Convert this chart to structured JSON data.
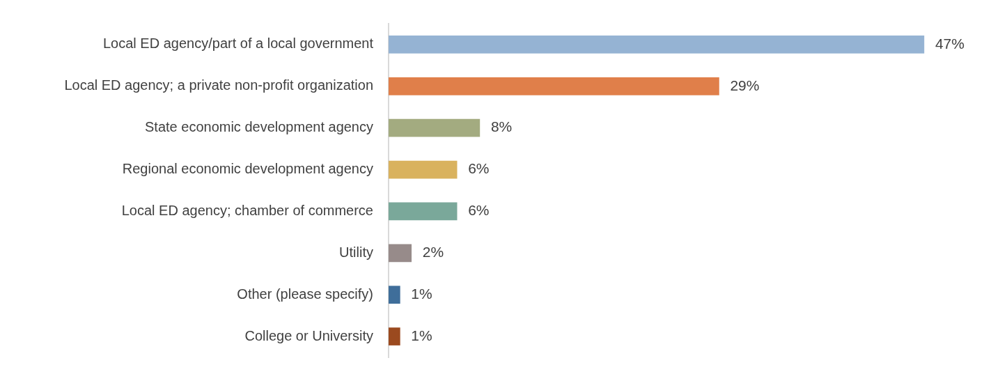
{
  "chart_data": {
    "type": "bar",
    "orientation": "horizontal",
    "categories": [
      "Local ED agency/part of a local government",
      "Local ED agency; a private non-profit organization",
      "State economic development agency",
      "Regional economic development agency",
      "Local ED agency; chamber of commerce",
      "Utility",
      "Other (please specify)",
      "College or University"
    ],
    "values": [
      47,
      29,
      8,
      6,
      6,
      2,
      1,
      1
    ],
    "colors": [
      "#95b3d3",
      "#e07f4a",
      "#a3ab80",
      "#d9b25e",
      "#7aa89a",
      "#978b8a",
      "#3f6e9a",
      "#9b4a1f"
    ],
    "value_labels": [
      "47%",
      "29%",
      "8%",
      "6%",
      "6%",
      "2%",
      "1%",
      "1%"
    ],
    "tick_labels": "y",
    "grid": false,
    "legend": false
  }
}
